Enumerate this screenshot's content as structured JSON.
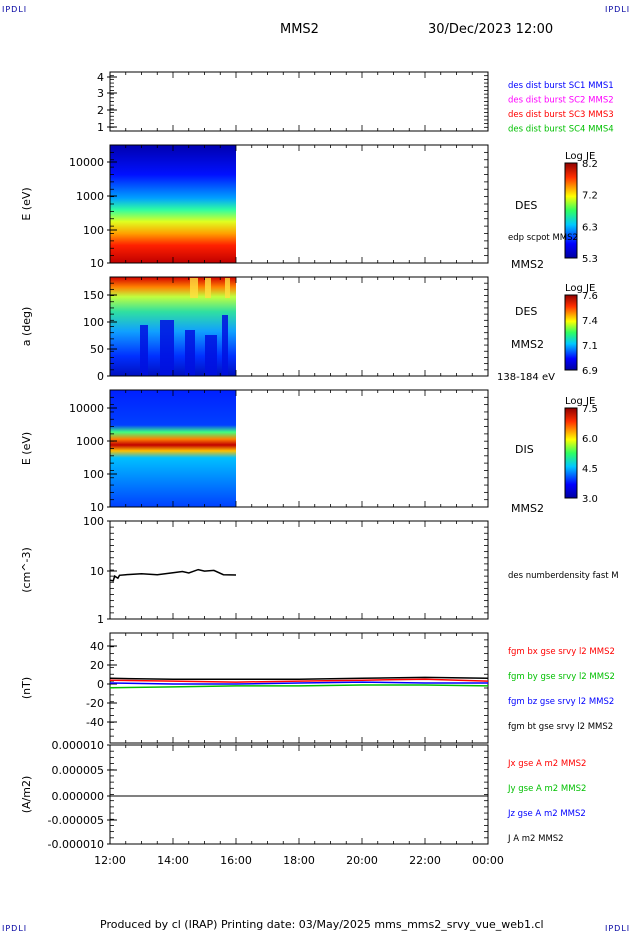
{
  "corners": {
    "tl": "IPDLI",
    "tr": "IPDLI",
    "bl": "IPDLI",
    "br": "IPDLI"
  },
  "header": {
    "mission": "MMS2",
    "datetime": "30/Dec/2023 12:00"
  },
  "footer": {
    "text": "Produced by cl (IRAP)   Printing date: 03/May/2025   mms_mms2_srvy_vue_web1.cl"
  },
  "colors": {
    "blue": "#0000ff",
    "magenta": "#ff00ff",
    "red": "#ff0000",
    "green": "#00c000",
    "black": "#000000"
  },
  "chart_data": [
    {
      "type": "line",
      "panel": "burst",
      "yticks": [
        "4",
        "3",
        "2",
        "1"
      ],
      "legend": [
        {
          "name": "des dist burst SC1 MMS1",
          "color": "#0000ff"
        },
        {
          "name": "des dist burst SC2 MMS2",
          "color": "#ff00ff"
        },
        {
          "name": "des dist burst SC3 MMS3",
          "color": "#ff0000"
        },
        {
          "name": "des dist burst SC4 MMS4",
          "color": "#00c000"
        }
      ]
    },
    {
      "type": "heatmap",
      "panel": "des-energy",
      "ylabel": "E (eV)",
      "yticks": [
        "10000",
        "1000",
        "100",
        "10"
      ],
      "label": "DES",
      "sublabel": "edp scpot MMS2",
      "sc": "MMS2",
      "colorbar": {
        "title": "Log JE",
        "ticks": [
          "8.2",
          "7.2",
          "6.3",
          "5.3"
        ]
      },
      "data_x_range": [
        "12:00",
        "16:00"
      ]
    },
    {
      "type": "heatmap",
      "panel": "des-pitch",
      "ylabel": "a (deg)",
      "yticks": [
        "150",
        "100",
        "50",
        "0"
      ],
      "label": "DES",
      "sc": "MMS2",
      "energy_range": "138-184 eV",
      "colorbar": {
        "title": "Log JE",
        "ticks": [
          "7.6",
          "7.4",
          "7.1",
          "6.9"
        ]
      },
      "data_x_range": [
        "12:00",
        "16:00"
      ]
    },
    {
      "type": "heatmap",
      "panel": "dis-energy",
      "ylabel": "E (eV)",
      "yticks": [
        "10000",
        "1000",
        "100",
        "10"
      ],
      "label": "DIS",
      "sc": "MMS2",
      "colorbar": {
        "title": "Log JE",
        "ticks": [
          "7.5",
          "6.0",
          "4.5",
          "3.0"
        ]
      },
      "data_x_range": [
        "12:00",
        "16:00"
      ]
    },
    {
      "type": "line",
      "panel": "density",
      "ylabel": "(cm^-3)",
      "yscale": "log",
      "yticks": [
        "100",
        "10",
        "1"
      ],
      "series": [
        {
          "name": "des numberdensity fast M",
          "color": "#000000",
          "x": [
            0,
            0.1,
            0.15,
            0.25,
            0.3,
            0.5,
            1.0,
            1.5,
            2.0,
            2.3,
            2.5,
            2.8,
            3.0,
            3.3,
            3.6,
            4.0
          ],
          "values": [
            6.2,
            6.0,
            7.5,
            6.8,
            7.8,
            8.0,
            8.4,
            8.0,
            8.8,
            9.3,
            8.7,
            10.2,
            9.5,
            9.8,
            8.0,
            7.9
          ]
        }
      ]
    },
    {
      "type": "line",
      "panel": "magnetic",
      "ylabel": "(nT)",
      "yticks": [
        "40",
        "20",
        "0",
        "-20",
        "-40"
      ],
      "series": [
        {
          "name": "fgm bx gse srvy l2 MMS2",
          "color": "#ff0000",
          "x": [
            0,
            2,
            4,
            6,
            8,
            10,
            12
          ],
          "values": [
            4,
            3,
            2,
            3,
            4,
            5,
            3
          ]
        },
        {
          "name": "fgm by gse srvy l2 MMS2",
          "color": "#00c000",
          "x": [
            0,
            2,
            4,
            6,
            8,
            10,
            12
          ],
          "values": [
            -4,
            -3,
            -2,
            -2,
            -1,
            -1,
            -2
          ]
        },
        {
          "name": "fgm bz gse srvy l2 MMS2",
          "color": "#0000ff",
          "x": [
            0,
            2,
            4,
            6,
            8,
            10,
            12
          ],
          "values": [
            1,
            0,
            0,
            1,
            2,
            1,
            1
          ]
        },
        {
          "name": "fgm bt gse srvy l2 MMS2",
          "color": "#000000",
          "x": [
            0,
            2,
            4,
            6,
            8,
            10,
            12
          ],
          "values": [
            6,
            5,
            5,
            5,
            6,
            7,
            6
          ]
        }
      ]
    },
    {
      "type": "line",
      "panel": "current",
      "ylabel": "(A/m2)",
      "yticks": [
        "0.000010",
        "0.000005",
        "0.000000",
        "-0.000005",
        "-0.000010"
      ],
      "series": [
        {
          "name": "Jx gse A m2 MMS2",
          "color": "#ff0000"
        },
        {
          "name": "Jy gse A m2 MMS2",
          "color": "#00c000"
        },
        {
          "name": "Jz gse A m2 MMS2",
          "color": "#0000ff"
        },
        {
          "name": "J A m2 MMS2",
          "color": "#000000",
          "x": [
            0,
            12
          ],
          "values": [
            0,
            0
          ]
        }
      ]
    }
  ],
  "xaxis": {
    "ticks": [
      "12:00",
      "14:00",
      "16:00",
      "18:00",
      "20:00",
      "22:00",
      "00:00"
    ]
  }
}
